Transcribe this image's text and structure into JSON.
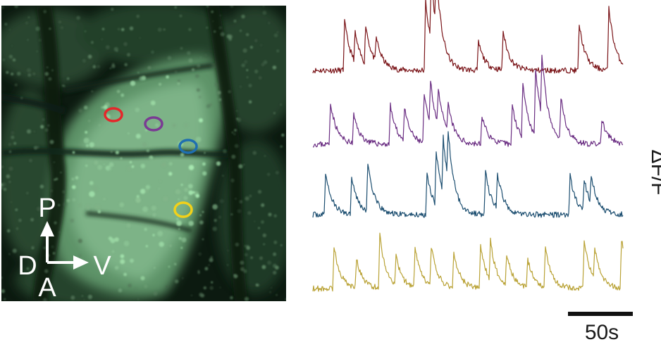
{
  "figure": {
    "orientation": {
      "up": "P",
      "down": "A",
      "left": "D",
      "right": "V",
      "arrow_color": "#ffffff"
    },
    "rois": [
      {
        "color": "#e5262a"
      },
      {
        "color": "#7a3b93"
      },
      {
        "color": "#1f6fb0"
      },
      {
        "color": "#f2d119"
      }
    ],
    "traces": [
      {
        "color": "#7a1418"
      },
      {
        "color": "#6a2d82"
      },
      {
        "color": "#1c4e70"
      },
      {
        "color": "#b9a235"
      }
    ],
    "ylabel": "ΔF/F",
    "scale_bar": {
      "label": "50s"
    }
  }
}
